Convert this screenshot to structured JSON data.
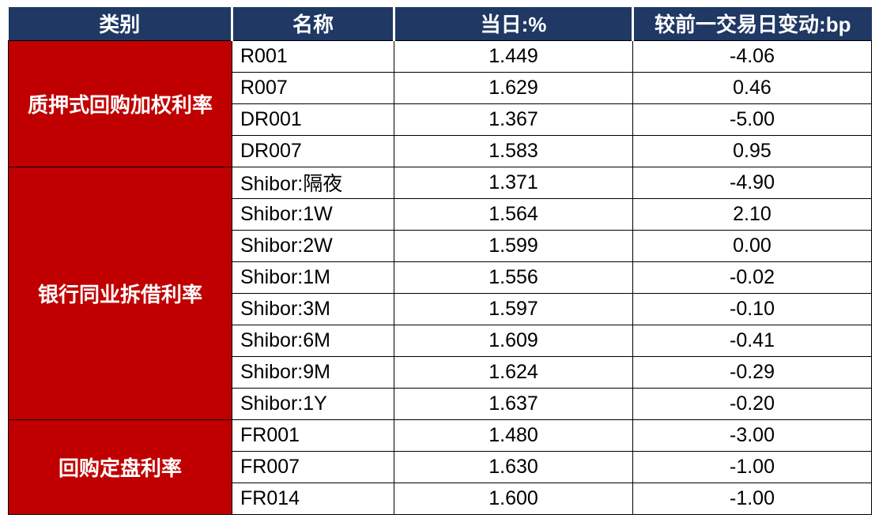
{
  "chart_data": {
    "type": "table",
    "columns": [
      "类别",
      "名称",
      "当日:%",
      "较前一交易日变动:bp"
    ],
    "rows": [
      [
        "质押式回购加权利率",
        "R001",
        1.449,
        -4.06
      ],
      [
        "质押式回购加权利率",
        "R007",
        1.629,
        0.46
      ],
      [
        "质押式回购加权利率",
        "DR001",
        1.367,
        -5.0
      ],
      [
        "质押式回购加权利率",
        "DR007",
        1.583,
        0.95
      ],
      [
        "银行同业拆借利率",
        "Shibor:隔夜",
        1.371,
        -4.9
      ],
      [
        "银行同业拆借利率",
        "Shibor:1W",
        1.564,
        2.1
      ],
      [
        "银行同业拆借利率",
        "Shibor:2W",
        1.599,
        0.0
      ],
      [
        "银行同业拆借利率",
        "Shibor:1M",
        1.556,
        -0.02
      ],
      [
        "银行同业拆借利率",
        "Shibor:3M",
        1.597,
        -0.1
      ],
      [
        "银行同业拆借利率",
        "Shibor:6M",
        1.609,
        -0.41
      ],
      [
        "银行同业拆借利率",
        "Shibor:9M",
        1.624,
        -0.29
      ],
      [
        "银行同业拆借利率",
        "Shibor:1Y",
        1.637,
        -0.2
      ],
      [
        "回购定盘利率",
        "FR001",
        1.48,
        -3.0
      ],
      [
        "回购定盘利率",
        "FR007",
        1.63,
        -1.0
      ],
      [
        "回购定盘利率",
        "FR014",
        1.6,
        -1.0
      ]
    ]
  },
  "table": {
    "headers": [
      "类别",
      "名称",
      "当日:%",
      "较前一交易日变动:bp"
    ],
    "groups": [
      {
        "category": "质押式回购加权利率",
        "rows": [
          {
            "name": "R001",
            "value": "1.449",
            "change": "-4.06"
          },
          {
            "name": "R007",
            "value": "1.629",
            "change": "0.46"
          },
          {
            "name": "DR001",
            "value": "1.367",
            "change": "-5.00"
          },
          {
            "name": "DR007",
            "value": "1.583",
            "change": "0.95"
          }
        ]
      },
      {
        "category": "银行同业拆借利率",
        "rows": [
          {
            "name": "Shibor:隔夜",
            "value": "1.371",
            "change": "-4.90"
          },
          {
            "name": "Shibor:1W",
            "value": "1.564",
            "change": "2.10"
          },
          {
            "name": "Shibor:2W",
            "value": "1.599",
            "change": "0.00"
          },
          {
            "name": "Shibor:1M",
            "value": "1.556",
            "change": "-0.02"
          },
          {
            "name": "Shibor:3M",
            "value": "1.597",
            "change": "-0.10"
          },
          {
            "name": "Shibor:6M",
            "value": "1.609",
            "change": "-0.41"
          },
          {
            "name": "Shibor:9M",
            "value": "1.624",
            "change": "-0.29"
          },
          {
            "name": "Shibor:1Y",
            "value": "1.637",
            "change": "-0.20"
          }
        ]
      },
      {
        "category": "回购定盘利率",
        "rows": [
          {
            "name": "FR001",
            "value": "1.480",
            "change": "-3.00"
          },
          {
            "name": "FR007",
            "value": "1.630",
            "change": "-1.00"
          },
          {
            "name": "FR014",
            "value": "1.600",
            "change": "-1.00"
          }
        ]
      }
    ],
    "colors": {
      "header_bg": "#1F3864",
      "header_text": "#FFFFFF",
      "category_bg": "#C00000",
      "category_text": "#FFFFFF",
      "border": "#000000"
    }
  }
}
